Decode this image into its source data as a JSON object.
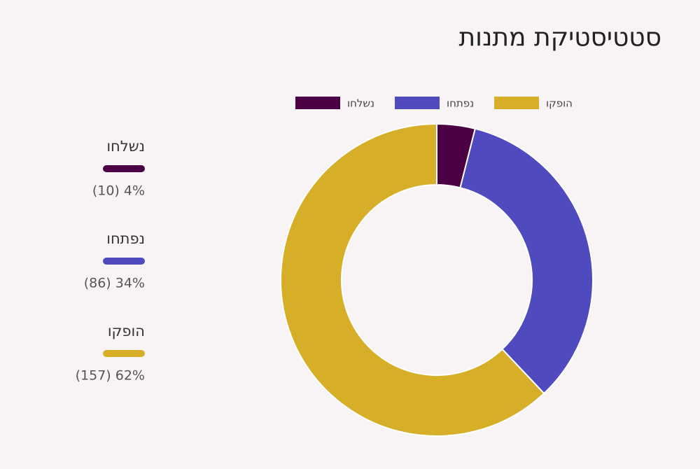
{
  "chart_data": {
    "type": "donut",
    "title": "סטטיסטיקת מתנות",
    "categories": [
      "נשלחו",
      "נפתחו",
      "הופקו"
    ],
    "values": [
      10,
      86,
      157
    ],
    "value_labels": [
      "(10) 4%",
      "(86) 34%",
      "(157) 62%"
    ],
    "colors": [
      "#4b0045",
      "#4f4bbf",
      "#d6ae28"
    ]
  }
}
